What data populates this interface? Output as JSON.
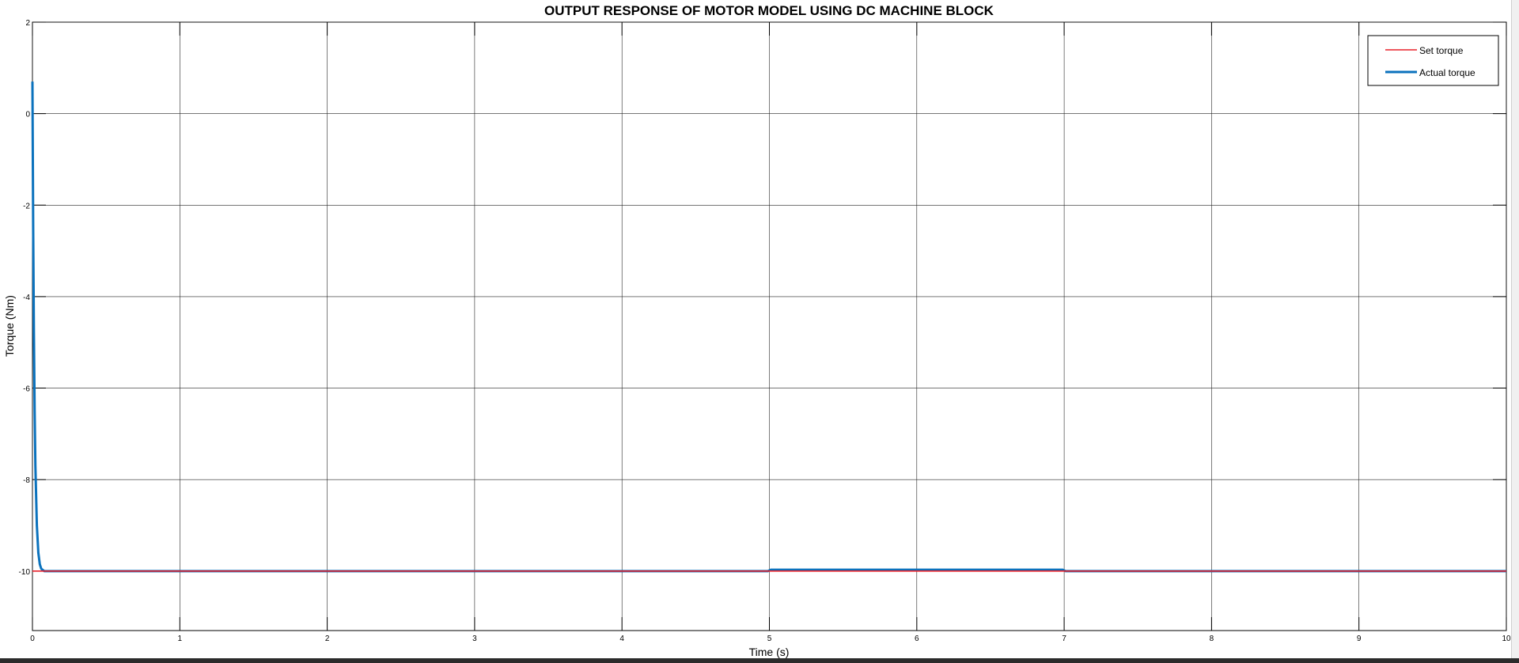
{
  "chart_data": {
    "type": "line",
    "title": "OUTPUT RESPONSE OF MOTOR MODEL USING DC MACHINE BLOCK",
    "xlabel": "Time (s)",
    "ylabel": "Torque (Nm)",
    "xlim": [
      0,
      10
    ],
    "ylim": [
      -11.3,
      2
    ],
    "xticks": [
      0,
      1,
      2,
      3,
      4,
      5,
      6,
      7,
      8,
      9,
      10
    ],
    "xtick_labels": [
      "0",
      "1",
      "2",
      "3",
      "4",
      "5",
      "6",
      "7",
      "8",
      "9",
      "10"
    ],
    "yticks": [
      2,
      0,
      -2,
      -4,
      -6,
      -8,
      -10
    ],
    "ytick_labels": [
      "2",
      "0",
      "-2",
      "-4",
      "-6",
      "-8",
      "-10"
    ],
    "grid": true,
    "legend_position": "top-right",
    "series": [
      {
        "name": "Set torque",
        "color": "#e8202a",
        "x": [
          0,
          0.05,
          1,
          2,
          3,
          4,
          5,
          6,
          7,
          8,
          9,
          10
        ],
        "y": [
          -10,
          -10,
          -10,
          -10,
          -10,
          -10,
          -10,
          -10,
          -10,
          -10,
          -10,
          -10
        ]
      },
      {
        "name": "Actual torque",
        "color": "#0b72bd",
        "x": [
          0,
          0.005,
          0.01,
          0.015,
          0.02,
          0.03,
          0.04,
          0.05,
          0.06,
          0.08,
          0.1,
          1,
          2,
          3,
          4,
          4.99,
          5.01,
          6,
          6.99,
          7.01,
          8,
          9,
          10
        ],
        "y": [
          0.7,
          -2.5,
          -4.8,
          -6.5,
          -7.7,
          -9.0,
          -9.6,
          -9.85,
          -9.95,
          -10.0,
          -10.0,
          -10.0,
          -10.0,
          -10.0,
          -10.0,
          -10.0,
          -9.97,
          -9.97,
          -9.97,
          -10.0,
          -10.0,
          -10.0,
          -10.0
        ]
      }
    ]
  }
}
